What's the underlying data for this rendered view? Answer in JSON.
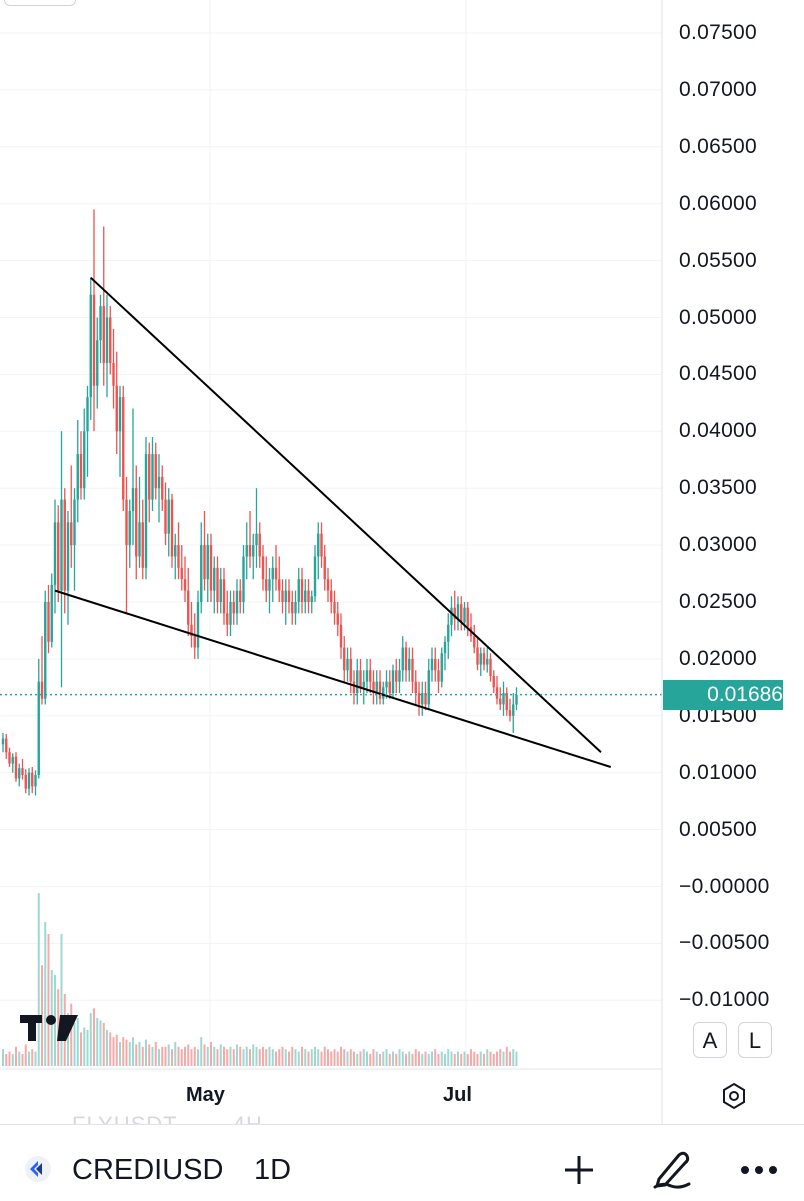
{
  "chart_data": {
    "type": "candlestick",
    "price_axis": {
      "ticks": [
        "0.07500",
        "0.07000",
        "0.06500",
        "0.06000",
        "0.05500",
        "0.05000",
        "0.04500",
        "0.04000",
        "0.03500",
        "0.03000",
        "0.02500",
        "0.02000",
        "0.01500",
        "0.01000",
        "0.00500",
        "−0.00000",
        "−0.00500",
        "−0.01000"
      ],
      "tick_values": [
        0.075,
        0.07,
        0.065,
        0.06,
        0.055,
        0.05,
        0.045,
        0.04,
        0.035,
        0.03,
        0.025,
        0.02,
        0.015,
        0.01,
        0.005,
        0.0,
        -0.005,
        -0.01
      ]
    },
    "time_axis": {
      "ticks": [
        "May",
        "Jul"
      ]
    },
    "last_price": "0.01686",
    "last_price_value": 0.01686,
    "colors": {
      "up": "#26a69a",
      "down": "#ef5350",
      "trendline": "#000000",
      "grid": "#f0f3fa"
    },
    "trendlines": [
      {
        "name": "upper",
        "from": {
          "bar": 27,
          "price": 0.0535
        },
        "to": {
          "bar": 184,
          "price": 0.0118
        }
      },
      {
        "name": "lower",
        "from": {
          "bar": 16,
          "price": 0.026
        },
        "to": {
          "bar": 187,
          "price": 0.0105
        }
      }
    ],
    "bars": [
      {
        "o": 0.0125,
        "h": 0.0135,
        "l": 0.0118,
        "c": 0.013
      },
      {
        "o": 0.013,
        "h": 0.0134,
        "l": 0.0112,
        "c": 0.0118
      },
      {
        "o": 0.0118,
        "h": 0.0122,
        "l": 0.0105,
        "c": 0.0108
      },
      {
        "o": 0.0108,
        "h": 0.0117,
        "l": 0.01,
        "c": 0.0114
      },
      {
        "o": 0.0114,
        "h": 0.0118,
        "l": 0.0092,
        "c": 0.0095
      },
      {
        "o": 0.0095,
        "h": 0.0108,
        "l": 0.0088,
        "c": 0.0104
      },
      {
        "o": 0.0104,
        "h": 0.0112,
        "l": 0.0094,
        "c": 0.0098
      },
      {
        "o": 0.0098,
        "h": 0.0103,
        "l": 0.0082,
        "c": 0.0086
      },
      {
        "o": 0.0086,
        "h": 0.0104,
        "l": 0.008,
        "c": 0.01
      },
      {
        "o": 0.01,
        "h": 0.0105,
        "l": 0.0082,
        "c": 0.0088
      },
      {
        "o": 0.0088,
        "h": 0.0102,
        "l": 0.008,
        "c": 0.0098
      },
      {
        "o": 0.0098,
        "h": 0.02,
        "l": 0.0095,
        "c": 0.018
      },
      {
        "o": 0.018,
        "h": 0.022,
        "l": 0.016,
        "c": 0.0165
      },
      {
        "o": 0.0165,
        "h": 0.026,
        "l": 0.016,
        "c": 0.025
      },
      {
        "o": 0.025,
        "h": 0.0265,
        "l": 0.0205,
        "c": 0.0215
      },
      {
        "o": 0.0215,
        "h": 0.0275,
        "l": 0.021,
        "c": 0.0265
      },
      {
        "o": 0.0265,
        "h": 0.034,
        "l": 0.024,
        "c": 0.032
      },
      {
        "o": 0.032,
        "h": 0.0335,
        "l": 0.025,
        "c": 0.026
      },
      {
        "o": 0.026,
        "h": 0.04,
        "l": 0.0175,
        "c": 0.034
      },
      {
        "o": 0.034,
        "h": 0.035,
        "l": 0.024,
        "c": 0.026
      },
      {
        "o": 0.026,
        "h": 0.033,
        "l": 0.023,
        "c": 0.032
      },
      {
        "o": 0.032,
        "h": 0.037,
        "l": 0.028,
        "c": 0.03
      },
      {
        "o": 0.03,
        "h": 0.035,
        "l": 0.026,
        "c": 0.034
      },
      {
        "o": 0.034,
        "h": 0.041,
        "l": 0.032,
        "c": 0.038
      },
      {
        "o": 0.038,
        "h": 0.04,
        "l": 0.034,
        "c": 0.035
      },
      {
        "o": 0.035,
        "h": 0.042,
        "l": 0.034,
        "c": 0.04
      },
      {
        "o": 0.04,
        "h": 0.044,
        "l": 0.036,
        "c": 0.043
      },
      {
        "o": 0.043,
        "h": 0.0535,
        "l": 0.041,
        "c": 0.052
      },
      {
        "o": 0.052,
        "h": 0.0595,
        "l": 0.04,
        "c": 0.044
      },
      {
        "o": 0.044,
        "h": 0.05,
        "l": 0.042,
        "c": 0.048
      },
      {
        "o": 0.048,
        "h": 0.052,
        "l": 0.046,
        "c": 0.051
      },
      {
        "o": 0.051,
        "h": 0.058,
        "l": 0.044,
        "c": 0.046
      },
      {
        "o": 0.046,
        "h": 0.052,
        "l": 0.043,
        "c": 0.05
      },
      {
        "o": 0.05,
        "h": 0.051,
        "l": 0.045,
        "c": 0.046
      },
      {
        "o": 0.046,
        "h": 0.049,
        "l": 0.042,
        "c": 0.044
      },
      {
        "o": 0.044,
        "h": 0.047,
        "l": 0.038,
        "c": 0.04
      },
      {
        "o": 0.04,
        "h": 0.044,
        "l": 0.036,
        "c": 0.043
      },
      {
        "o": 0.043,
        "h": 0.044,
        "l": 0.033,
        "c": 0.034
      },
      {
        "o": 0.034,
        "h": 0.036,
        "l": 0.024,
        "c": 0.03
      },
      {
        "o": 0.03,
        "h": 0.034,
        "l": 0.028,
        "c": 0.033
      },
      {
        "o": 0.033,
        "h": 0.042,
        "l": 0.03,
        "c": 0.035
      },
      {
        "o": 0.035,
        "h": 0.037,
        "l": 0.027,
        "c": 0.029
      },
      {
        "o": 0.029,
        "h": 0.036,
        "l": 0.028,
        "c": 0.032
      },
      {
        "o": 0.032,
        "h": 0.034,
        "l": 0.027,
        "c": 0.028
      },
      {
        "o": 0.028,
        "h": 0.0395,
        "l": 0.027,
        "c": 0.038
      },
      {
        "o": 0.038,
        "h": 0.039,
        "l": 0.032,
        "c": 0.034
      },
      {
        "o": 0.034,
        "h": 0.0395,
        "l": 0.033,
        "c": 0.038
      },
      {
        "o": 0.038,
        "h": 0.039,
        "l": 0.034,
        "c": 0.035
      },
      {
        "o": 0.035,
        "h": 0.038,
        "l": 0.032,
        "c": 0.036
      },
      {
        "o": 0.036,
        "h": 0.037,
        "l": 0.033,
        "c": 0.034
      },
      {
        "o": 0.034,
        "h": 0.0355,
        "l": 0.03,
        "c": 0.031
      },
      {
        "o": 0.031,
        "h": 0.035,
        "l": 0.029,
        "c": 0.034
      },
      {
        "o": 0.034,
        "h": 0.0345,
        "l": 0.028,
        "c": 0.029
      },
      {
        "o": 0.029,
        "h": 0.031,
        "l": 0.027,
        "c": 0.03
      },
      {
        "o": 0.03,
        "h": 0.032,
        "l": 0.027,
        "c": 0.028
      },
      {
        "o": 0.028,
        "h": 0.03,
        "l": 0.026,
        "c": 0.027
      },
      {
        "o": 0.027,
        "h": 0.029,
        "l": 0.025,
        "c": 0.026
      },
      {
        "o": 0.026,
        "h": 0.028,
        "l": 0.022,
        "c": 0.023
      },
      {
        "o": 0.023,
        "h": 0.025,
        "l": 0.021,
        "c": 0.022
      },
      {
        "o": 0.022,
        "h": 0.024,
        "l": 0.02,
        "c": 0.021
      },
      {
        "o": 0.021,
        "h": 0.026,
        "l": 0.02,
        "c": 0.025
      },
      {
        "o": 0.025,
        "h": 0.032,
        "l": 0.024,
        "c": 0.03
      },
      {
        "o": 0.03,
        "h": 0.033,
        "l": 0.026,
        "c": 0.027
      },
      {
        "o": 0.027,
        "h": 0.031,
        "l": 0.025,
        "c": 0.03
      },
      {
        "o": 0.03,
        "h": 0.031,
        "l": 0.025,
        "c": 0.026
      },
      {
        "o": 0.026,
        "h": 0.029,
        "l": 0.024,
        "c": 0.028
      },
      {
        "o": 0.028,
        "h": 0.029,
        "l": 0.024,
        "c": 0.025
      },
      {
        "o": 0.025,
        "h": 0.028,
        "l": 0.024,
        "c": 0.027
      },
      {
        "o": 0.027,
        "h": 0.028,
        "l": 0.023,
        "c": 0.024
      },
      {
        "o": 0.024,
        "h": 0.026,
        "l": 0.022,
        "c": 0.023
      },
      {
        "o": 0.023,
        "h": 0.026,
        "l": 0.022,
        "c": 0.025
      },
      {
        "o": 0.025,
        "h": 0.026,
        "l": 0.023,
        "c": 0.024
      },
      {
        "o": 0.024,
        "h": 0.027,
        "l": 0.023,
        "c": 0.026
      },
      {
        "o": 0.026,
        "h": 0.027,
        "l": 0.024,
        "c": 0.025
      },
      {
        "o": 0.025,
        "h": 0.03,
        "l": 0.024,
        "c": 0.029
      },
      {
        "o": 0.029,
        "h": 0.032,
        "l": 0.027,
        "c": 0.03
      },
      {
        "o": 0.03,
        "h": 0.033,
        "l": 0.028,
        "c": 0.029
      },
      {
        "o": 0.029,
        "h": 0.031,
        "l": 0.027,
        "c": 0.03
      },
      {
        "o": 0.03,
        "h": 0.035,
        "l": 0.028,
        "c": 0.031
      },
      {
        "o": 0.031,
        "h": 0.032,
        "l": 0.028,
        "c": 0.029
      },
      {
        "o": 0.029,
        "h": 0.03,
        "l": 0.026,
        "c": 0.027
      },
      {
        "o": 0.027,
        "h": 0.029,
        "l": 0.025,
        "c": 0.026
      },
      {
        "o": 0.026,
        "h": 0.028,
        "l": 0.024,
        "c": 0.027
      },
      {
        "o": 0.027,
        "h": 0.029,
        "l": 0.025,
        "c": 0.028
      },
      {
        "o": 0.028,
        "h": 0.03,
        "l": 0.026,
        "c": 0.027
      },
      {
        "o": 0.027,
        "h": 0.029,
        "l": 0.025,
        "c": 0.026
      },
      {
        "o": 0.026,
        "h": 0.027,
        "l": 0.024,
        "c": 0.025
      },
      {
        "o": 0.025,
        "h": 0.027,
        "l": 0.023,
        "c": 0.026
      },
      {
        "o": 0.026,
        "h": 0.027,
        "l": 0.024,
        "c": 0.025
      },
      {
        "o": 0.025,
        "h": 0.026,
        "l": 0.023,
        "c": 0.024
      },
      {
        "o": 0.024,
        "h": 0.026,
        "l": 0.023,
        "c": 0.025
      },
      {
        "o": 0.025,
        "h": 0.028,
        "l": 0.024,
        "c": 0.027
      },
      {
        "o": 0.027,
        "h": 0.028,
        "l": 0.024,
        "c": 0.025
      },
      {
        "o": 0.025,
        "h": 0.027,
        "l": 0.024,
        "c": 0.026
      },
      {
        "o": 0.026,
        "h": 0.027,
        "l": 0.024,
        "c": 0.025
      },
      {
        "o": 0.025,
        "h": 0.026,
        "l": 0.024,
        "c": 0.0255
      },
      {
        "o": 0.0255,
        "h": 0.03,
        "l": 0.025,
        "c": 0.029
      },
      {
        "o": 0.029,
        "h": 0.032,
        "l": 0.027,
        "c": 0.031
      },
      {
        "o": 0.031,
        "h": 0.032,
        "l": 0.028,
        "c": 0.029
      },
      {
        "o": 0.029,
        "h": 0.03,
        "l": 0.026,
        "c": 0.027
      },
      {
        "o": 0.027,
        "h": 0.028,
        "l": 0.025,
        "c": 0.026
      },
      {
        "o": 0.026,
        "h": 0.027,
        "l": 0.024,
        "c": 0.025
      },
      {
        "o": 0.025,
        "h": 0.026,
        "l": 0.023,
        "c": 0.024
      },
      {
        "o": 0.024,
        "h": 0.025,
        "l": 0.022,
        "c": 0.023
      },
      {
        "o": 0.023,
        "h": 0.024,
        "l": 0.02,
        "c": 0.021
      },
      {
        "o": 0.021,
        "h": 0.022,
        "l": 0.018,
        "c": 0.019
      },
      {
        "o": 0.019,
        "h": 0.021,
        "l": 0.018,
        "c": 0.02
      },
      {
        "o": 0.02,
        "h": 0.021,
        "l": 0.017,
        "c": 0.018
      },
      {
        "o": 0.018,
        "h": 0.019,
        "l": 0.016,
        "c": 0.017
      },
      {
        "o": 0.017,
        "h": 0.02,
        "l": 0.016,
        "c": 0.019
      },
      {
        "o": 0.019,
        "h": 0.02,
        "l": 0.017,
        "c": 0.0175
      },
      {
        "o": 0.0175,
        "h": 0.019,
        "l": 0.016,
        "c": 0.018
      },
      {
        "o": 0.018,
        "h": 0.02,
        "l": 0.017,
        "c": 0.019
      },
      {
        "o": 0.019,
        "h": 0.02,
        "l": 0.017,
        "c": 0.018
      },
      {
        "o": 0.018,
        "h": 0.019,
        "l": 0.016,
        "c": 0.017
      },
      {
        "o": 0.017,
        "h": 0.019,
        "l": 0.016,
        "c": 0.018
      },
      {
        "o": 0.018,
        "h": 0.019,
        "l": 0.016,
        "c": 0.0165
      },
      {
        "o": 0.0165,
        "h": 0.018,
        "l": 0.016,
        "c": 0.0175
      },
      {
        "o": 0.0175,
        "h": 0.019,
        "l": 0.0165,
        "c": 0.018
      },
      {
        "o": 0.018,
        "h": 0.019,
        "l": 0.0165,
        "c": 0.017
      },
      {
        "o": 0.017,
        "h": 0.0195,
        "l": 0.0165,
        "c": 0.019
      },
      {
        "o": 0.019,
        "h": 0.02,
        "l": 0.017,
        "c": 0.018
      },
      {
        "o": 0.018,
        "h": 0.02,
        "l": 0.017,
        "c": 0.019
      },
      {
        "o": 0.019,
        "h": 0.022,
        "l": 0.018,
        "c": 0.021
      },
      {
        "o": 0.021,
        "h": 0.0215,
        "l": 0.018,
        "c": 0.019
      },
      {
        "o": 0.019,
        "h": 0.021,
        "l": 0.018,
        "c": 0.02
      },
      {
        "o": 0.02,
        "h": 0.021,
        "l": 0.017,
        "c": 0.018
      },
      {
        "o": 0.018,
        "h": 0.019,
        "l": 0.016,
        "c": 0.017
      },
      {
        "o": 0.017,
        "h": 0.018,
        "l": 0.015,
        "c": 0.016
      },
      {
        "o": 0.016,
        "h": 0.018,
        "l": 0.015,
        "c": 0.017
      },
      {
        "o": 0.017,
        "h": 0.018,
        "l": 0.0155,
        "c": 0.016
      },
      {
        "o": 0.016,
        "h": 0.02,
        "l": 0.0155,
        "c": 0.019
      },
      {
        "o": 0.019,
        "h": 0.021,
        "l": 0.018,
        "c": 0.02
      },
      {
        "o": 0.02,
        "h": 0.021,
        "l": 0.018,
        "c": 0.019
      },
      {
        "o": 0.019,
        "h": 0.02,
        "l": 0.017,
        "c": 0.018
      },
      {
        "o": 0.018,
        "h": 0.021,
        "l": 0.0175,
        "c": 0.0205
      },
      {
        "o": 0.0205,
        "h": 0.022,
        "l": 0.019,
        "c": 0.0215
      },
      {
        "o": 0.0215,
        "h": 0.024,
        "l": 0.02,
        "c": 0.023
      },
      {
        "o": 0.023,
        "h": 0.0255,
        "l": 0.022,
        "c": 0.0245
      },
      {
        "o": 0.0245,
        "h": 0.026,
        "l": 0.0225,
        "c": 0.0235
      },
      {
        "o": 0.0235,
        "h": 0.0255,
        "l": 0.0225,
        "c": 0.0248
      },
      {
        "o": 0.0248,
        "h": 0.0255,
        "l": 0.0225,
        "c": 0.0232
      },
      {
        "o": 0.0232,
        "h": 0.025,
        "l": 0.0225,
        "c": 0.0245
      },
      {
        "o": 0.0245,
        "h": 0.025,
        "l": 0.022,
        "c": 0.0228
      },
      {
        "o": 0.0228,
        "h": 0.024,
        "l": 0.0215,
        "c": 0.022
      },
      {
        "o": 0.022,
        "h": 0.023,
        "l": 0.0205,
        "c": 0.021
      },
      {
        "o": 0.021,
        "h": 0.022,
        "l": 0.019,
        "c": 0.0195
      },
      {
        "o": 0.0195,
        "h": 0.021,
        "l": 0.0185,
        "c": 0.0205
      },
      {
        "o": 0.0205,
        "h": 0.021,
        "l": 0.019,
        "c": 0.0195
      },
      {
        "o": 0.0195,
        "h": 0.021,
        "l": 0.0188,
        "c": 0.02
      },
      {
        "o": 0.02,
        "h": 0.0205,
        "l": 0.018,
        "c": 0.0185
      },
      {
        "o": 0.0185,
        "h": 0.019,
        "l": 0.017,
        "c": 0.0175
      },
      {
        "o": 0.0175,
        "h": 0.0185,
        "l": 0.016,
        "c": 0.0165
      },
      {
        "o": 0.0165,
        "h": 0.0175,
        "l": 0.0155,
        "c": 0.016
      },
      {
        "o": 0.016,
        "h": 0.018,
        "l": 0.015,
        "c": 0.017
      },
      {
        "o": 0.017,
        "h": 0.0175,
        "l": 0.015,
        "c": 0.0155
      },
      {
        "o": 0.0155,
        "h": 0.0165,
        "l": 0.0145,
        "c": 0.015
      },
      {
        "o": 0.015,
        "h": 0.017,
        "l": 0.0135,
        "c": 0.016
      },
      {
        "o": 0.016,
        "h": 0.0175,
        "l": 0.0155,
        "c": 0.0168
      }
    ],
    "volume": [
      0.07,
      0.05,
      0.06,
      0.05,
      0.08,
      0.06,
      0.05,
      0.09,
      0.06,
      0.07,
      0.06,
      0.72,
      0.42,
      0.6,
      0.55,
      0.4,
      0.38,
      0.32,
      0.55,
      0.3,
      0.22,
      0.26,
      0.18,
      0.2,
      0.14,
      0.16,
      0.15,
      0.22,
      0.24,
      0.2,
      0.19,
      0.18,
      0.15,
      0.14,
      0.12,
      0.13,
      0.1,
      0.12,
      0.11,
      0.1,
      0.12,
      0.09,
      0.1,
      0.08,
      0.11,
      0.09,
      0.08,
      0.1,
      0.07,
      0.08,
      0.08,
      0.09,
      0.07,
      0.1,
      0.08,
      0.07,
      0.08,
      0.09,
      0.07,
      0.08,
      0.07,
      0.12,
      0.09,
      0.08,
      0.1,
      0.08,
      0.07,
      0.09,
      0.08,
      0.07,
      0.08,
      0.07,
      0.09,
      0.08,
      0.07,
      0.08,
      0.07,
      0.09,
      0.08,
      0.07,
      0.08,
      0.07,
      0.08,
      0.07,
      0.06,
      0.07,
      0.08,
      0.07,
      0.06,
      0.08,
      0.07,
      0.06,
      0.08,
      0.07,
      0.06,
      0.07,
      0.08,
      0.07,
      0.06,
      0.08,
      0.07,
      0.06,
      0.07,
      0.06,
      0.08,
      0.07,
      0.06,
      0.07,
      0.06,
      0.05,
      0.06,
      0.07,
      0.06,
      0.05,
      0.07,
      0.06,
      0.05,
      0.06,
      0.07,
      0.05,
      0.06,
      0.05,
      0.07,
      0.06,
      0.05,
      0.06,
      0.05,
      0.07,
      0.06,
      0.05,
      0.06,
      0.05,
      0.06,
      0.07,
      0.05,
      0.06,
      0.05,
      0.07,
      0.06,
      0.05,
      0.06,
      0.05,
      0.06,
      0.05,
      0.07,
      0.06,
      0.05,
      0.06,
      0.05,
      0.07,
      0.06,
      0.05,
      0.06,
      0.07,
      0.06,
      0.08,
      0.06,
      0.07,
      0.06,
      0.05,
      0.06,
      0.05,
      0.06,
      0.05,
      0.07,
      0.06,
      0.05,
      0.06,
      0.05,
      0.06,
      0.07,
      0.06,
      0.05,
      0.06,
      0.06,
      0.07,
      0.06,
      0.08,
      0.06,
      0.07,
      0.06,
      0.05,
      0.19
    ]
  },
  "symbol": "CREDIUSD",
  "interval": "1D",
  "ghost_row": {
    "symbol": "FLYUSDT",
    "interval": "4H"
  },
  "price_scale_buttons": {
    "auto": "A",
    "log": "L"
  },
  "icons": {
    "logo": "tradingview-logo-icon",
    "settings": "settings-hexagon-icon",
    "symbol": "crypto-symbol-icon",
    "add": "plus-icon",
    "draw": "pen-icon",
    "more": "more-horizontal-icon"
  }
}
